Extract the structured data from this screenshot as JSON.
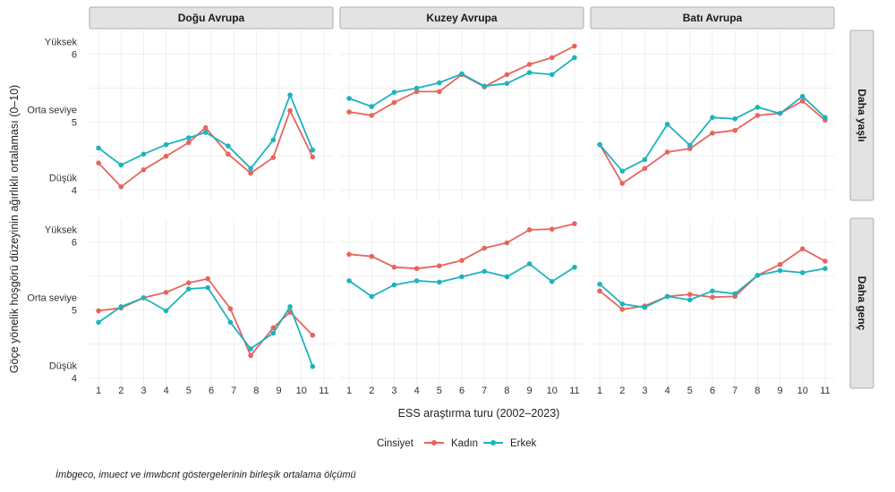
{
  "chart_data": {
    "type": "line",
    "xlabel": "ESS araştırma turu (2002–2023)",
    "ylabel": "Göçe yönelik hoşgörü düzeyinin ağırlıklı ortalaması (0–10)",
    "x_ticks": [
      "1",
      "2",
      "3",
      "4",
      "5",
      "6",
      "7",
      "8",
      "9",
      "10",
      "11"
    ],
    "ylim": [
      3.85,
      6.35
    ],
    "y_ticks": [
      {
        "value": 6,
        "line1": "Yüksek",
        "line2": "6"
      },
      {
        "value": 5,
        "line1": "Orta seviye",
        "line2": "5"
      },
      {
        "value": 4,
        "line1": "Düşük",
        "line2": "4"
      }
    ],
    "column_strips": [
      "Doğu Avrupa",
      "Kuzey Avrupa",
      "Batı Avrupa"
    ],
    "row_strips": [
      "Daha yaşlı",
      "Daha genç"
    ],
    "legend": {
      "title": "Cinsiyet",
      "placement": "bottom",
      "entries": [
        "Kadın",
        "Erkek"
      ]
    },
    "colors": {
      "Kadın": "#E8645D",
      "Erkek": "#1DB3BE"
    },
    "caption": "İmbgeco, imuect ve imwbcnt göstergelerinin birleşik ortalama ölçümü",
    "panels": [
      {
        "col": 0,
        "row": 0,
        "series": [
          {
            "name": "Kadın",
            "x": [
              1,
              2,
              3,
              4,
              5,
              5.75,
              6.75,
              7.75,
              8.75,
              9.5,
              10.5
            ],
            "y": [
              4.4,
              4.05,
              4.3,
              4.5,
              4.7,
              4.92,
              4.53,
              4.25,
              4.48,
              5.17,
              4.49
            ]
          },
          {
            "name": "Erkek",
            "x": [
              1,
              2,
              3,
              4,
              5,
              5.75,
              6.75,
              7.75,
              8.75,
              9.5,
              10.5
            ],
            "y": [
              4.62,
              4.37,
              4.53,
              4.67,
              4.77,
              4.85,
              4.65,
              4.32,
              4.74,
              5.4,
              4.59
            ]
          }
        ]
      },
      {
        "col": 1,
        "row": 0,
        "series": [
          {
            "name": "Kadın",
            "x": [
              1,
              2,
              3,
              4,
              5,
              6,
              7,
              8,
              9,
              10,
              11
            ],
            "y": [
              5.15,
              5.1,
              5.29,
              5.45,
              5.45,
              5.7,
              5.52,
              5.7,
              5.85,
              5.95,
              6.12
            ]
          },
          {
            "name": "Erkek",
            "x": [
              1,
              2,
              3,
              4,
              5,
              6,
              7,
              8,
              9,
              10,
              11
            ],
            "y": [
              5.35,
              5.23,
              5.44,
              5.5,
              5.58,
              5.71,
              5.53,
              5.57,
              5.73,
              5.7,
              5.95
            ]
          }
        ]
      },
      {
        "col": 2,
        "row": 0,
        "series": [
          {
            "name": "Kadın",
            "x": [
              1,
              2,
              3,
              4,
              5,
              6,
              7,
              8,
              9,
              10,
              11
            ],
            "y": [
              4.67,
              4.1,
              4.32,
              4.56,
              4.61,
              4.84,
              4.88,
              5.1,
              5.13,
              5.31,
              5.03
            ]
          },
          {
            "name": "Erkek",
            "x": [
              1,
              2,
              3,
              4,
              5,
              6,
              7,
              8,
              9,
              10,
              11
            ],
            "y": [
              4.67,
              4.28,
              4.45,
              4.97,
              4.66,
              5.07,
              5.05,
              5.22,
              5.13,
              5.38,
              5.07
            ]
          }
        ]
      },
      {
        "col": 0,
        "row": 1,
        "series": [
          {
            "name": "Kadın",
            "x": [
              1,
              2,
              3,
              4,
              5,
              5.85,
              6.85,
              7.75,
              8.75,
              9.5,
              10.5
            ],
            "y": [
              4.99,
              5.03,
              5.18,
              5.26,
              5.4,
              5.46,
              5.02,
              4.33,
              4.74,
              4.97,
              4.63
            ]
          },
          {
            "name": "Erkek",
            "x": [
              1,
              2,
              3,
              4,
              5,
              5.85,
              6.85,
              7.75,
              8.75,
              9.5,
              10.5
            ],
            "y": [
              4.82,
              5.05,
              5.18,
              4.99,
              5.31,
              5.33,
              4.82,
              4.43,
              4.66,
              5.05,
              4.17
            ]
          }
        ]
      },
      {
        "col": 1,
        "row": 1,
        "series": [
          {
            "name": "Kadın",
            "x": [
              1,
              2,
              3,
              4,
              5,
              6,
              7,
              8,
              9,
              10,
              11
            ],
            "y": [
              5.82,
              5.79,
              5.63,
              5.61,
              5.65,
              5.73,
              5.91,
              5.99,
              6.18,
              6.19,
              6.27
            ]
          },
          {
            "name": "Erkek",
            "x": [
              1,
              2,
              3,
              4,
              5,
              6,
              7,
              8,
              9,
              10,
              11
            ],
            "y": [
              5.43,
              5.2,
              5.37,
              5.43,
              5.41,
              5.49,
              5.57,
              5.49,
              5.68,
              5.42,
              5.63
            ]
          }
        ]
      },
      {
        "col": 2,
        "row": 1,
        "series": [
          {
            "name": "Kadın",
            "x": [
              1,
              2,
              3,
              4,
              5,
              6,
              7,
              8,
              9,
              10,
              11
            ],
            "y": [
              5.28,
              5.01,
              5.06,
              5.2,
              5.23,
              5.19,
              5.2,
              5.51,
              5.67,
              5.9,
              5.72
            ]
          },
          {
            "name": "Erkek",
            "x": [
              1,
              2,
              3,
              4,
              5,
              6,
              7,
              8,
              9,
              10,
              11
            ],
            "y": [
              5.38,
              5.09,
              5.04,
              5.2,
              5.15,
              5.28,
              5.24,
              5.51,
              5.58,
              5.55,
              5.61
            ]
          }
        ]
      }
    ]
  }
}
